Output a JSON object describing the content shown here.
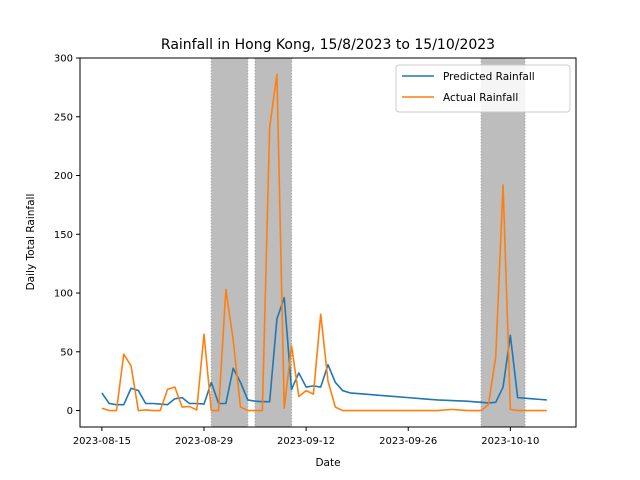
{
  "chart_data": {
    "type": "line",
    "title": "Rainfall in Hong Kong, 15/8/2023 to 15/10/2023",
    "xlabel": "Date",
    "ylabel": "Daily Total Rainfall",
    "xlim": [
      "2023-08-12",
      "2023-10-19"
    ],
    "ylim": [
      -14,
      300
    ],
    "yticks": [
      0,
      50,
      100,
      150,
      200,
      250,
      300
    ],
    "xticks": [
      "2023-08-15",
      "2023-08-29",
      "2023-09-12",
      "2023-09-26",
      "2023-10-10"
    ],
    "grid": false,
    "legend_position": "top-right",
    "shaded_ranges": [
      [
        "2023-08-30",
        "2023-09-04"
      ],
      [
        "2023-09-05",
        "2023-09-10"
      ],
      [
        "2023-10-06",
        "2023-10-12"
      ]
    ],
    "shade_color": "#bdbdbd",
    "series": [
      {
        "name": "Predicted Rainfall",
        "color": "#1f77b4",
        "x": [
          "2023-08-15",
          "2023-08-16",
          "2023-08-17",
          "2023-08-18",
          "2023-08-19",
          "2023-08-20",
          "2023-08-21",
          "2023-08-22",
          "2023-08-23",
          "2023-08-24",
          "2023-08-25",
          "2023-08-26",
          "2023-08-27",
          "2023-08-28",
          "2023-08-29",
          "2023-08-30",
          "2023-08-31",
          "2023-09-01",
          "2023-09-02",
          "2023-09-03",
          "2023-09-04",
          "2023-09-05",
          "2023-09-06",
          "2023-09-07",
          "2023-09-08",
          "2023-09-09",
          "2023-09-10",
          "2023-09-11",
          "2023-09-12",
          "2023-09-13",
          "2023-09-14",
          "2023-09-15",
          "2023-09-16",
          "2023-09-17",
          "2023-09-18",
          "2023-09-20",
          "2023-09-22",
          "2023-09-24",
          "2023-09-26",
          "2023-09-28",
          "2023-09-30",
          "2023-10-02",
          "2023-10-04",
          "2023-10-06",
          "2023-10-07",
          "2023-10-08",
          "2023-10-09",
          "2023-10-10",
          "2023-10-11",
          "2023-10-12",
          "2023-10-13",
          "2023-10-14",
          "2023-10-15"
        ],
        "values": [
          15,
          6,
          5,
          5,
          19,
          17,
          6,
          6,
          5.5,
          5,
          10,
          11,
          6,
          6,
          5.5,
          24,
          6,
          6,
          36,
          24,
          9,
          8,
          7.5,
          7.5,
          78,
          96,
          18,
          32,
          20,
          21,
          20,
          39,
          24,
          17,
          15,
          14,
          13,
          12,
          11,
          10,
          9,
          8.5,
          8,
          7,
          6.5,
          7,
          20,
          64,
          11,
          10.5,
          10,
          9.5,
          9
        ]
      },
      {
        "name": "Actual Rainfall",
        "color": "#ff7f0e",
        "x": [
          "2023-08-15",
          "2023-08-16",
          "2023-08-17",
          "2023-08-18",
          "2023-08-19",
          "2023-08-20",
          "2023-08-21",
          "2023-08-22",
          "2023-08-23",
          "2023-08-24",
          "2023-08-25",
          "2023-08-26",
          "2023-08-27",
          "2023-08-28",
          "2023-08-29",
          "2023-08-30",
          "2023-08-31",
          "2023-09-01",
          "2023-09-02",
          "2023-09-03",
          "2023-09-04",
          "2023-09-05",
          "2023-09-06",
          "2023-09-07",
          "2023-09-08",
          "2023-09-09",
          "2023-09-10",
          "2023-09-11",
          "2023-09-12",
          "2023-09-13",
          "2023-09-14",
          "2023-09-15",
          "2023-09-16",
          "2023-09-17",
          "2023-09-18",
          "2023-09-20",
          "2023-09-22",
          "2023-09-24",
          "2023-09-26",
          "2023-09-28",
          "2023-09-30",
          "2023-10-02",
          "2023-10-04",
          "2023-10-06",
          "2023-10-07",
          "2023-10-08",
          "2023-10-09",
          "2023-10-10",
          "2023-10-11",
          "2023-10-12",
          "2023-10-13",
          "2023-10-14",
          "2023-10-15"
        ],
        "values": [
          2,
          0,
          0,
          48,
          38,
          0,
          0.5,
          0,
          0,
          18,
          20,
          3,
          3.5,
          0.5,
          65,
          0,
          0,
          103,
          60,
          3,
          0,
          0,
          0,
          241,
          286,
          2,
          55,
          12,
          17,
          14,
          82,
          25,
          3,
          0,
          0,
          0,
          0,
          0,
          0,
          0,
          0,
          1,
          0,
          0,
          5,
          46,
          192,
          1,
          0,
          0,
          0,
          0,
          0
        ]
      }
    ]
  }
}
